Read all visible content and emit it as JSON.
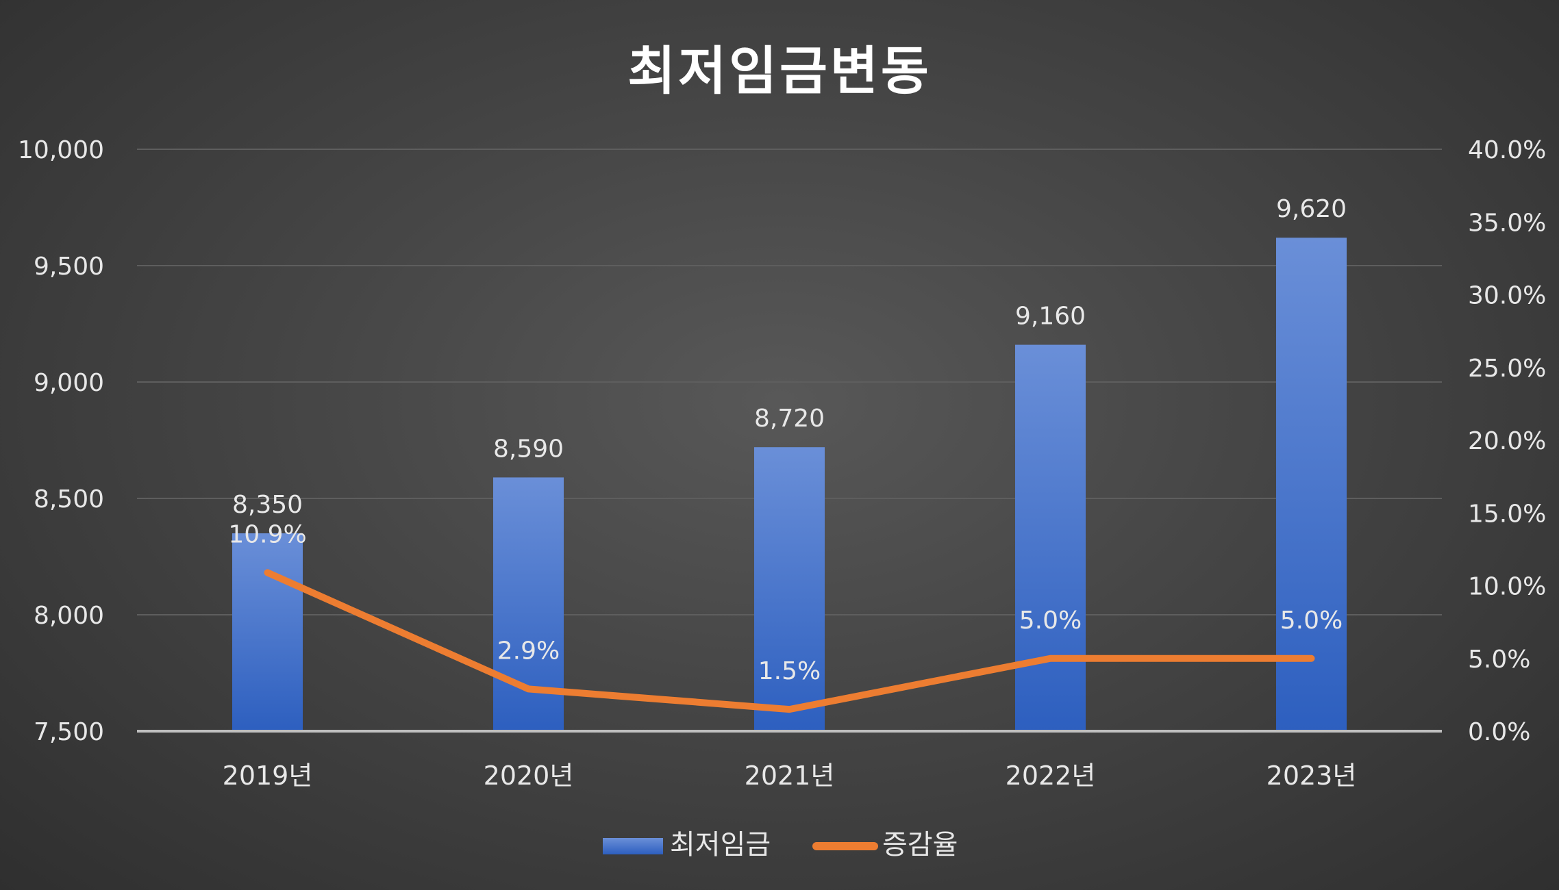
{
  "chart_data": {
    "type": "bar",
    "title": "최저임금변동",
    "categories": [
      "2019년",
      "2020년",
      "2021년",
      "2022년",
      "2023년"
    ],
    "series": [
      {
        "name": "최저임금",
        "type": "bar",
        "axis": "left",
        "values": [
          8350,
          8590,
          8720,
          9160,
          9620
        ],
        "labels": [
          "8,350",
          "8,590",
          "8,720",
          "9,160",
          "9,620"
        ],
        "color": "#3f70cf"
      },
      {
        "name": "증감율",
        "type": "line",
        "axis": "right",
        "values": [
          10.9,
          2.9,
          1.5,
          5.0,
          5.0
        ],
        "labels": [
          "10.9%",
          "2.9%",
          "1.5%",
          "5.0%",
          "5.0%"
        ],
        "color": "#ed7d31"
      }
    ],
    "y_left": {
      "min": 7500,
      "max": 10000,
      "ticks": [
        7500,
        8000,
        8500,
        9000,
        9500,
        10000
      ],
      "tick_labels": [
        "7,500",
        "8,000",
        "8,500",
        "9,000",
        "9,500",
        "10,000"
      ]
    },
    "y_right": {
      "min": 0,
      "max": 40,
      "ticks": [
        0,
        5,
        10,
        15,
        20,
        25,
        30,
        35,
        40
      ],
      "tick_labels": [
        "0.0%",
        "5.0%",
        "10.0%",
        "15.0%",
        "20.0%",
        "25.0%",
        "30.0%",
        "35.0%",
        "40.0%"
      ]
    },
    "grid": true,
    "legend": "bottom",
    "colors": {
      "bar_top": "#6a8fd8",
      "bar_bottom": "#2d5fbf",
      "line": "#ed7d31",
      "grid": "#5e5e5e",
      "axis": "#bfbfbf",
      "text": "#e8e8e8"
    }
  }
}
